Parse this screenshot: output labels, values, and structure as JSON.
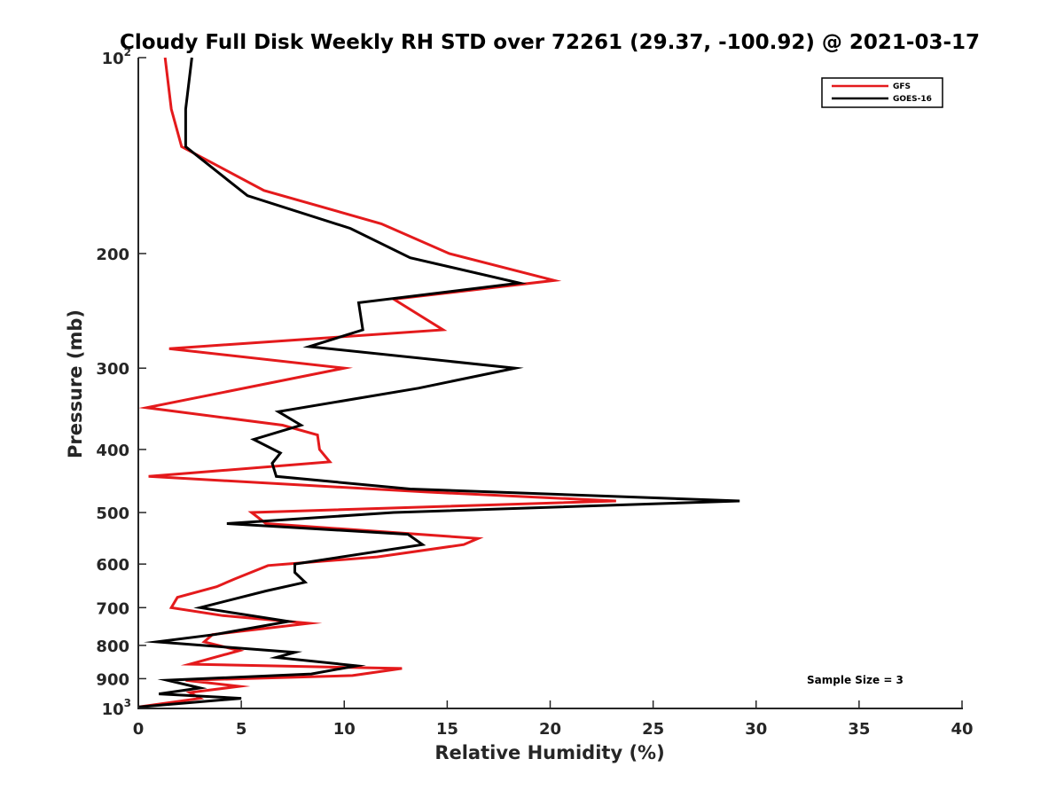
{
  "chart_data": {
    "type": "line",
    "title": "Cloudy Full Disk Weekly RH STD over 72261 (29.37, -100.92) @ 2021-03-17",
    "xlabel": "Relative Humidity (%)",
    "ylabel": "Pressure (mb)",
    "xlim": [
      0,
      40
    ],
    "ylim": [
      100,
      1000
    ],
    "yscale": "log",
    "y_reversed": true,
    "xticks": [
      0,
      5,
      10,
      15,
      20,
      25,
      30,
      35,
      40
    ],
    "yticks": [
      {
        "value": 100,
        "base": "10",
        "exp": "2"
      },
      {
        "value": 200,
        "label": "200"
      },
      {
        "value": 300,
        "label": "300"
      },
      {
        "value": 400,
        "label": "400"
      },
      {
        "value": 500,
        "label": "500"
      },
      {
        "value": 600,
        "label": "600"
      },
      {
        "value": 700,
        "label": "700"
      },
      {
        "value": 800,
        "label": "800"
      },
      {
        "value": 900,
        "label": "900"
      },
      {
        "value": 1000,
        "base": "10",
        "exp": "3"
      }
    ],
    "legend_position": "top-right",
    "annotation": "Sample Size = 3",
    "series": [
      {
        "name": "GFS",
        "color": "#e41a1c",
        "points": [
          {
            "rh": 1.3,
            "p": 100
          },
          {
            "rh": 1.6,
            "p": 120
          },
          {
            "rh": 2.1,
            "p": 137
          },
          {
            "rh": 6.1,
            "p": 160
          },
          {
            "rh": 11.8,
            "p": 180
          },
          {
            "rh": 15.1,
            "p": 200
          },
          {
            "rh": 20.2,
            "p": 220
          },
          {
            "rh": 12.4,
            "p": 235
          },
          {
            "rh": 14.8,
            "p": 262
          },
          {
            "rh": 1.5,
            "p": 280
          },
          {
            "rh": 10.0,
            "p": 300
          },
          {
            "rh": 0.4,
            "p": 345
          },
          {
            "rh": 7.0,
            "p": 367
          },
          {
            "rh": 8.7,
            "p": 380
          },
          {
            "rh": 8.8,
            "p": 400
          },
          {
            "rh": 9.3,
            "p": 418
          },
          {
            "rh": 0.5,
            "p": 440
          },
          {
            "rh": 14.0,
            "p": 465
          },
          {
            "rh": 23.2,
            "p": 480
          },
          {
            "rh": 5.5,
            "p": 500
          },
          {
            "rh": 6.2,
            "p": 520
          },
          {
            "rh": 16.5,
            "p": 548
          },
          {
            "rh": 15.8,
            "p": 560
          },
          {
            "rh": 11.6,
            "p": 585
          },
          {
            "rh": 6.3,
            "p": 603
          },
          {
            "rh": 4.7,
            "p": 632
          },
          {
            "rh": 3.8,
            "p": 650
          },
          {
            "rh": 1.9,
            "p": 675
          },
          {
            "rh": 1.6,
            "p": 700
          },
          {
            "rh": 4.1,
            "p": 720
          },
          {
            "rh": 8.3,
            "p": 740
          },
          {
            "rh": 3.6,
            "p": 770
          },
          {
            "rh": 3.2,
            "p": 790
          },
          {
            "rh": 4.9,
            "p": 815
          },
          {
            "rh": 2.5,
            "p": 855
          },
          {
            "rh": 12.8,
            "p": 868
          },
          {
            "rh": 10.4,
            "p": 890
          },
          {
            "rh": 2.3,
            "p": 905
          },
          {
            "rh": 4.9,
            "p": 925
          },
          {
            "rh": 2.5,
            "p": 945
          },
          {
            "rh": 3.0,
            "p": 965
          },
          {
            "rh": 0.0,
            "p": 995
          }
        ]
      },
      {
        "name": "GOES-16",
        "color": "#000000",
        "points": [
          {
            "rh": 2.6,
            "p": 100
          },
          {
            "rh": 2.3,
            "p": 120
          },
          {
            "rh": 2.3,
            "p": 137
          },
          {
            "rh": 5.3,
            "p": 163
          },
          {
            "rh": 10.3,
            "p": 183
          },
          {
            "rh": 13.2,
            "p": 203
          },
          {
            "rh": 18.5,
            "p": 222
          },
          {
            "rh": 10.7,
            "p": 238
          },
          {
            "rh": 10.9,
            "p": 262
          },
          {
            "rh": 8.3,
            "p": 278
          },
          {
            "rh": 18.3,
            "p": 300
          },
          {
            "rh": 13.6,
            "p": 322
          },
          {
            "rh": 6.8,
            "p": 350
          },
          {
            "rh": 7.9,
            "p": 367
          },
          {
            "rh": 5.6,
            "p": 386
          },
          {
            "rh": 6.9,
            "p": 405
          },
          {
            "rh": 6.5,
            "p": 420
          },
          {
            "rh": 6.7,
            "p": 440
          },
          {
            "rh": 13.2,
            "p": 460
          },
          {
            "rh": 29.2,
            "p": 480
          },
          {
            "rh": 12.4,
            "p": 500
          },
          {
            "rh": 4.3,
            "p": 520
          },
          {
            "rh": 13.1,
            "p": 540
          },
          {
            "rh": 13.8,
            "p": 560
          },
          {
            "rh": 7.6,
            "p": 600
          },
          {
            "rh": 7.6,
            "p": 618
          },
          {
            "rh": 8.1,
            "p": 640
          },
          {
            "rh": 6.2,
            "p": 660
          },
          {
            "rh": 3.0,
            "p": 700
          },
          {
            "rh": 7.3,
            "p": 735
          },
          {
            "rh": 3.7,
            "p": 770
          },
          {
            "rh": 0.9,
            "p": 790
          },
          {
            "rh": 7.6,
            "p": 820
          },
          {
            "rh": 6.7,
            "p": 835
          },
          {
            "rh": 10.6,
            "p": 860
          },
          {
            "rh": 8.4,
            "p": 885
          },
          {
            "rh": 1.4,
            "p": 905
          },
          {
            "rh": 3.0,
            "p": 930
          },
          {
            "rh": 1.0,
            "p": 950
          },
          {
            "rh": 5.0,
            "p": 965
          },
          {
            "rh": 0.0,
            "p": 995
          }
        ]
      }
    ]
  }
}
